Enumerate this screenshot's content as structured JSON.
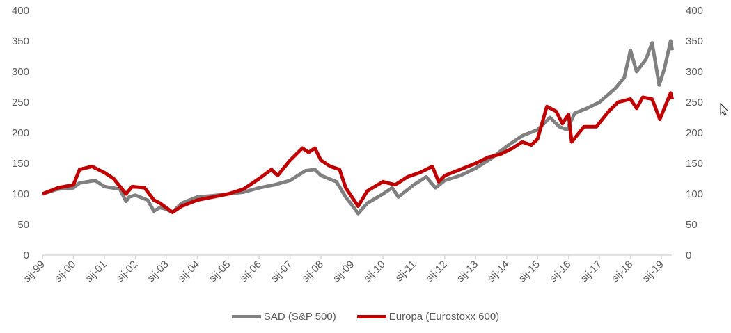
{
  "chart_data": {
    "type": "line",
    "title": "",
    "xlabel": "",
    "ylabel": "",
    "ylim": [
      0,
      400
    ],
    "yticks": [
      "0",
      "50",
      "100",
      "150",
      "200",
      "250",
      "300",
      "350",
      "400"
    ],
    "y2ticks": [
      "0",
      "50",
      "100",
      "150",
      "200",
      "250",
      "300",
      "350",
      "400"
    ],
    "xticks": [
      "sij-99",
      "sij-00",
      "sij-01",
      "sij-02",
      "sij-03",
      "sij-04",
      "sij-05",
      "sij-06",
      "sij-07",
      "sij-08",
      "sij-09",
      "sij-10",
      "sij-11",
      "sij-12",
      "sij-13",
      "sij-14",
      "sij-15",
      "sij-16",
      "sij-17",
      "sij-18",
      "sij-19"
    ],
    "xrange_years": [
      1999.0,
      2019.35
    ],
    "grid": false,
    "legend_position": "bottom",
    "series": [
      {
        "name": "SAD (S&P 500)",
        "color": "#808080",
        "x": [
          1999.0,
          1999.5,
          2000.0,
          2000.2,
          2000.7,
          2001.0,
          2001.5,
          2001.7,
          2001.8,
          2002.0,
          2002.4,
          2002.6,
          2002.8,
          2003.0,
          2003.2,
          2003.5,
          2004.0,
          2004.5,
          2005.0,
          2005.5,
          2006.0,
          2006.5,
          2007.0,
          2007.5,
          2007.8,
          2008.0,
          2008.5,
          2008.8,
          2009.0,
          2009.2,
          2009.5,
          2010.0,
          2010.3,
          2010.5,
          2011.0,
          2011.4,
          2011.7,
          2012.0,
          2012.5,
          2013.0,
          2013.5,
          2014.0,
          2014.5,
          2015.0,
          2015.4,
          2015.7,
          2015.95,
          2016.2,
          2016.6,
          2017.0,
          2017.5,
          2017.8,
          2018.0,
          2018.2,
          2018.5,
          2018.7,
          2018.93,
          2019.1,
          2019.3,
          2019.35
        ],
        "values": [
          100,
          108,
          110,
          118,
          122,
          112,
          108,
          88,
          95,
          98,
          90,
          72,
          78,
          75,
          70,
          85,
          95,
          97,
          100,
          103,
          110,
          115,
          122,
          138,
          140,
          130,
          120,
          95,
          82,
          68,
          85,
          100,
          110,
          95,
          115,
          128,
          110,
          122,
          130,
          142,
          158,
          178,
          195,
          205,
          225,
          210,
          205,
          232,
          240,
          250,
          272,
          290,
          335,
          300,
          320,
          347,
          278,
          305,
          350,
          335
        ]
      },
      {
        "name": "Europa (Eurostoxx 600)",
        "color": "#c00000",
        "x": [
          1999.0,
          1999.5,
          2000.0,
          2000.2,
          2000.6,
          2001.0,
          2001.3,
          2001.7,
          2001.9,
          2002.3,
          2002.6,
          2002.8,
          2003.2,
          2003.5,
          2004.0,
          2004.5,
          2005.0,
          2005.5,
          2006.0,
          2006.4,
          2006.6,
          2007.0,
          2007.4,
          2007.6,
          2007.8,
          2008.0,
          2008.3,
          2008.6,
          2008.8,
          2009.2,
          2009.5,
          2010.0,
          2010.4,
          2010.8,
          2011.2,
          2011.6,
          2011.8,
          2012.0,
          2012.5,
          2013.0,
          2013.4,
          2013.8,
          2014.2,
          2014.5,
          2014.8,
          2015.0,
          2015.3,
          2015.6,
          2015.8,
          2016.0,
          2016.1,
          2016.5,
          2016.9,
          2017.3,
          2017.6,
          2018.0,
          2018.2,
          2018.4,
          2018.7,
          2018.95,
          2019.3,
          2019.35
        ],
        "values": [
          100,
          110,
          115,
          140,
          145,
          135,
          125,
          100,
          112,
          110,
          90,
          85,
          70,
          80,
          90,
          95,
          100,
          108,
          125,
          140,
          130,
          155,
          175,
          168,
          175,
          155,
          145,
          140,
          110,
          80,
          105,
          120,
          115,
          128,
          135,
          145,
          120,
          130,
          140,
          150,
          160,
          165,
          175,
          185,
          180,
          190,
          243,
          235,
          215,
          230,
          185,
          210,
          210,
          235,
          250,
          255,
          240,
          258,
          255,
          222,
          265,
          255
        ]
      }
    ]
  },
  "legend": {
    "items": [
      "SAD (S&P 500)",
      "Europa (Eurostoxx 600)"
    ]
  }
}
